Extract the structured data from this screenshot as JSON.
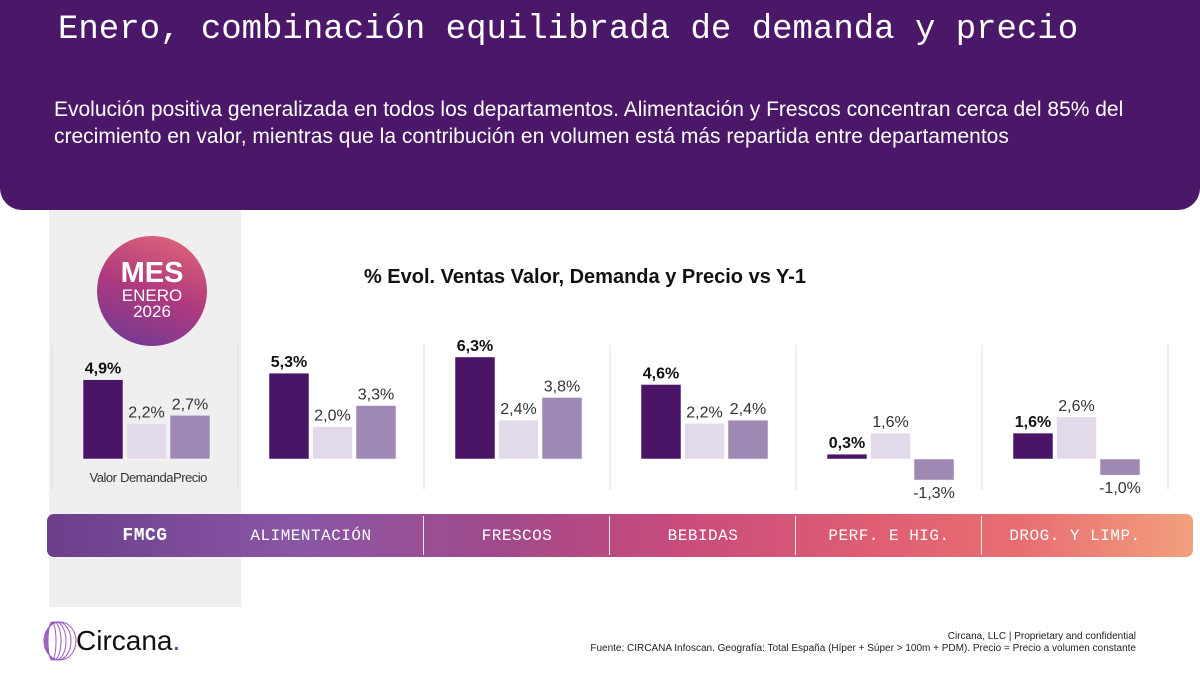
{
  "header": {
    "title": "Enero, combinación equilibrada de demanda y precio",
    "subtitle": "Evolución positiva generalizada en todos los departamentos. Alimentación y Frescos concentran cerca del 85% del crecimiento en valor, mientras que la contribución en volumen está más repartida entre departamentos"
  },
  "badge": {
    "line1": "MES",
    "line2": "ENERO",
    "line3": "2026"
  },
  "chart_data": {
    "type": "bar",
    "title": "% Evol. Ventas Valor, Demanda y Precio vs Y-1",
    "categories": [
      "FMCG",
      "ALIMENTACIÓN",
      "FRESCOS",
      "BEBIDAS",
      "PERF. E HIG.",
      "DROG. Y LIMP."
    ],
    "series_labels": [
      "Valor",
      "Demanda",
      "Precio"
    ],
    "series": [
      {
        "name": "Valor",
        "values": [
          4.9,
          5.3,
          6.3,
          4.6,
          0.3,
          1.6
        ],
        "labels": [
          "4,9%",
          "5,3%",
          "6,3%",
          "4,6%",
          "0,3%",
          "1,6%"
        ],
        "color": "#4a1566"
      },
      {
        "name": "Demanda",
        "values": [
          2.2,
          2.0,
          2.4,
          2.2,
          1.6,
          2.6
        ],
        "labels": [
          "2,2%",
          "2,0%",
          "2,4%",
          "2,2%",
          "1,6%",
          "2,6%"
        ],
        "color": "#e2d9ea"
      },
      {
        "name": "Precio",
        "values": [
          2.7,
          3.3,
          3.8,
          2.4,
          -1.3,
          -1.0
        ],
        "labels": [
          "2,7%",
          "3,3%",
          "3,8%",
          "2,4%",
          "-1,3%",
          "-1,0%"
        ],
        "color": "#a088b5"
      }
    ],
    "grid": false,
    "legend": "bottom-left"
  },
  "footer": {
    "company": "Circana, LLC  |  Proprietary and confidential",
    "source": "Fuente: CIRCANA Infoscan. Geografía: Total España (Híper + Súper > 100m + PDM). Precio = Precio a volumen constante"
  },
  "logo": {
    "text": "Circana",
    "dot": "."
  }
}
